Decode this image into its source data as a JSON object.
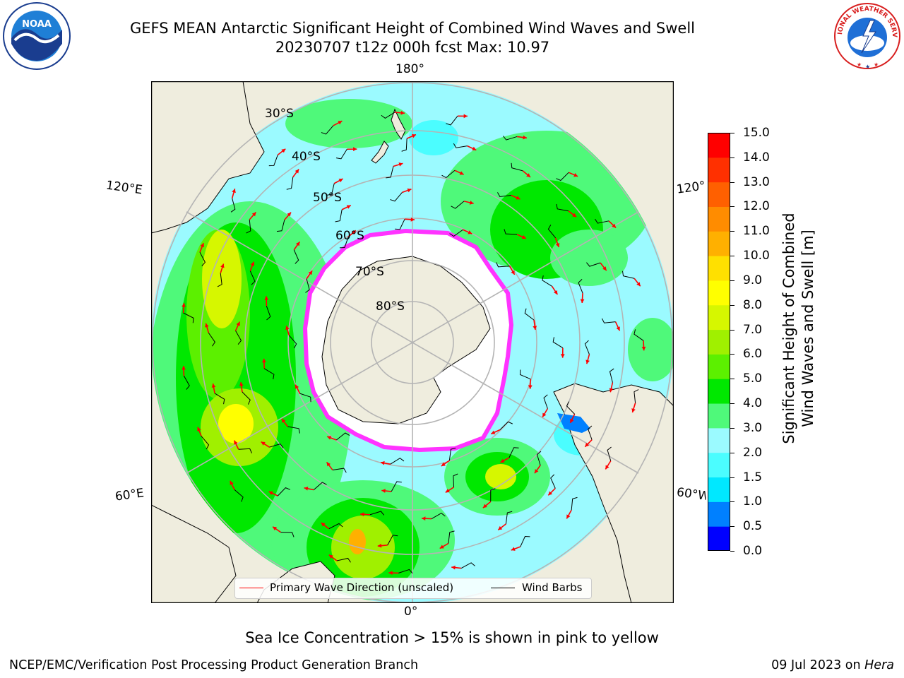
{
  "header": {
    "title_line1": "GEFS MEAN Antarctic Significant Height of Combined Wind Waves and Swell",
    "title_line2": "20230707 t12z 000h fcst   Max: 10.97"
  },
  "logos": {
    "left": {
      "name": "noaa-logo",
      "text": "NOAA",
      "ring_text": "NATIONAL OCEANIC AND ATMOSPHERIC ADMINISTRATION · U.S. DEPARTMENT OF COMMERCE"
    },
    "right": {
      "name": "nws-logo",
      "ring_text": "NATIONAL WEATHER SERVICE"
    }
  },
  "map": {
    "projection": "south-polar-stereographic",
    "longitude_labels": {
      "top": "180°",
      "left_upper": "120°E",
      "right_upper": "120°W",
      "left_lower": "60°E",
      "right_lower": "60°W",
      "bottom": "0°"
    },
    "latitude_labels": [
      "30°S",
      "40°S",
      "50°S",
      "60°S",
      "70°S",
      "80°S"
    ],
    "colors": {
      "land": "#efedde",
      "ocean_low": "#9bfaff",
      "ice_edge": "#ff33ff",
      "wave_arrow": "#ff0000",
      "wind_barb": "#000000",
      "grid": "#b4b4b4"
    }
  },
  "colorbar": {
    "label_line1": "Significant Height of Combined",
    "label_line2": "Wind Waves and Swell [m]",
    "ticks": [
      "15.0",
      "14.0",
      "13.0",
      "12.0",
      "11.0",
      "10.0",
      "9.0",
      "8.0",
      "7.0",
      "6.0",
      "5.0",
      "4.0",
      "3.0",
      "2.0",
      "1.5",
      "1.0",
      "0.5",
      "0.0"
    ],
    "colors": [
      "#0000ff",
      "#0080ff",
      "#00e8ff",
      "#4bfdff",
      "#9bfaff",
      "#4ff97a",
      "#00e800",
      "#5cf000",
      "#a0f000",
      "#d6f700",
      "#ffff00",
      "#ffe000",
      "#ffb000",
      "#ff8c00",
      "#ff6000",
      "#ff3000",
      "#ff0000"
    ]
  },
  "legend": {
    "items": [
      {
        "label": "Primary Wave Direction (unscaled)",
        "color": "#ff0000"
      },
      {
        "label": "Wind Barbs",
        "color": "#000000"
      }
    ]
  },
  "note": "Sea Ice Concentration > 15% is shown in pink to yellow",
  "footer": {
    "left": "NCEP/EMC/Verification Post Processing Product Generation Branch",
    "right_date": "09 Jul 2023 on ",
    "right_machine": "Hera"
  }
}
